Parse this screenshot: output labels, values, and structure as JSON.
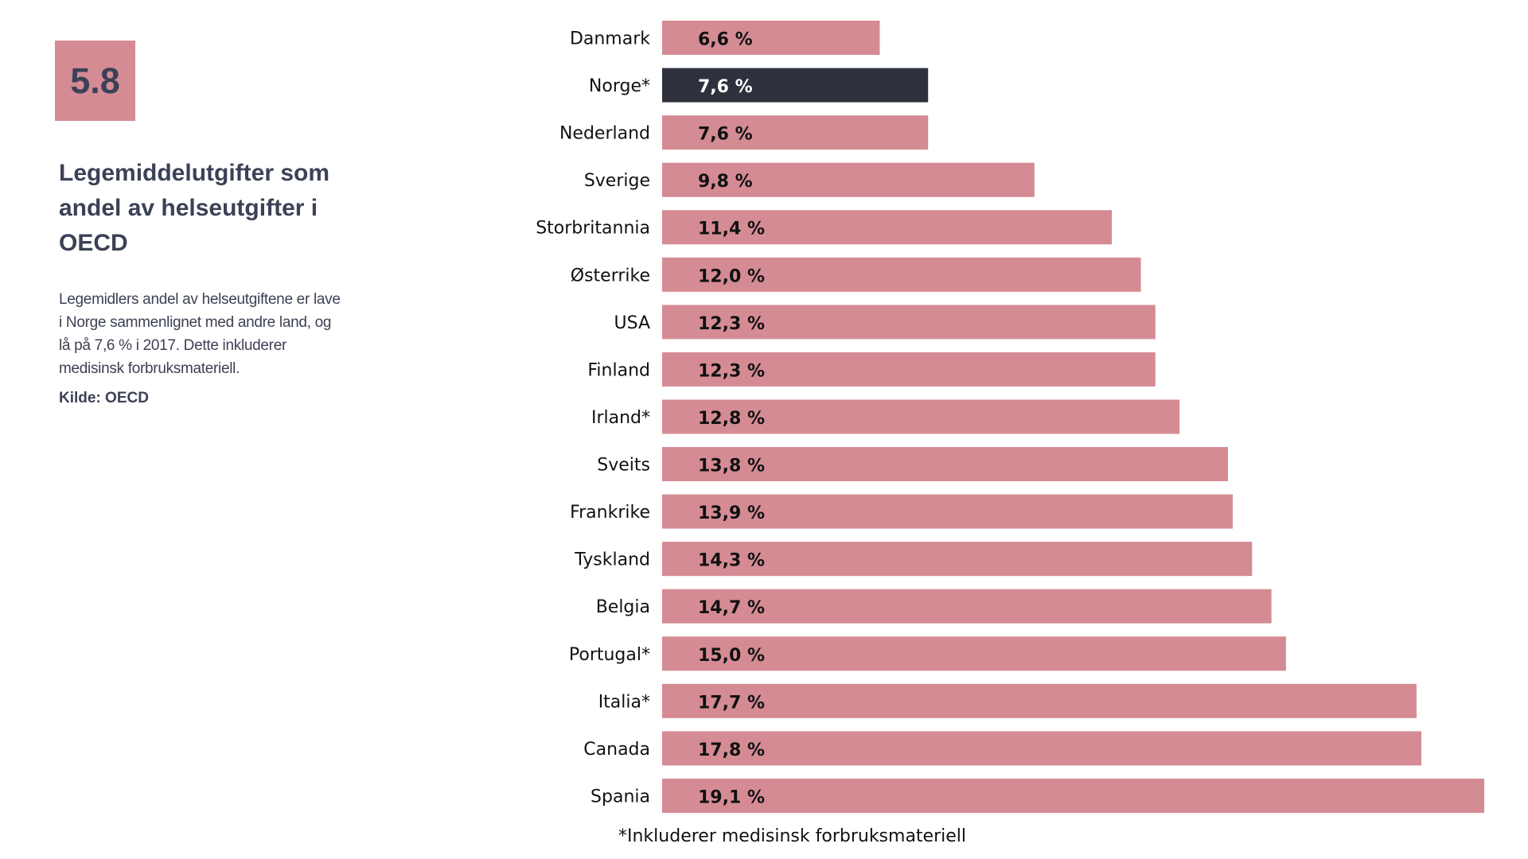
{
  "sidebar": {
    "figure_number": "5.8",
    "title": "Legemiddelutgifter som andel av helseutgifter i OECD",
    "description": "Legemidlers andel av helseutgiftene er lave i Norge sammenlignet med andre land, og lå på 7,6 % i 2017.  Dette inkluderer medisinsk forbruksmateriell.",
    "source": "Kilde: OECD"
  },
  "colors": {
    "bar": "#D58B94",
    "highlight_bar": "#2E313D",
    "label_on_bar": "#111111",
    "label_on_highlight": "#ffffff"
  },
  "chart_data": {
    "type": "bar",
    "orientation": "horizontal",
    "title": "Legemiddelutgifter som andel av helseutgifter i OECD",
    "xlabel": "",
    "ylabel": "",
    "unit": "%",
    "grid": false,
    "highlight": "Norge*",
    "categories": [
      "Danmark",
      "Norge*",
      "Nederland",
      "Sverige",
      "Storbritannia",
      "Østerrike",
      "USA",
      "Finland",
      "Irland*",
      "Sveits",
      "Frankrike",
      "Tyskland",
      "Belgia",
      "Portugal*",
      "Italia*",
      "Canada",
      "Spania"
    ],
    "values": [
      6.6,
      7.6,
      7.6,
      9.8,
      11.4,
      12.0,
      12.3,
      12.3,
      12.8,
      13.8,
      13.9,
      14.3,
      14.7,
      15.0,
      17.7,
      17.8,
      19.1
    ],
    "value_labels": [
      "6,6 %",
      "7,6 %",
      "7,6 %",
      "9,8 %",
      "11,4 %",
      "12,0 %",
      "12,3 %",
      "12,3 %",
      "12,8 %",
      "13,8 %",
      "13,9 %",
      "14,3 %",
      "14,7 %",
      "15,0 %",
      "17,7 %",
      "17,8 %",
      "19,1 %"
    ],
    "footnote": "*Inkluderer medisinsk forbruksmateriell"
  }
}
